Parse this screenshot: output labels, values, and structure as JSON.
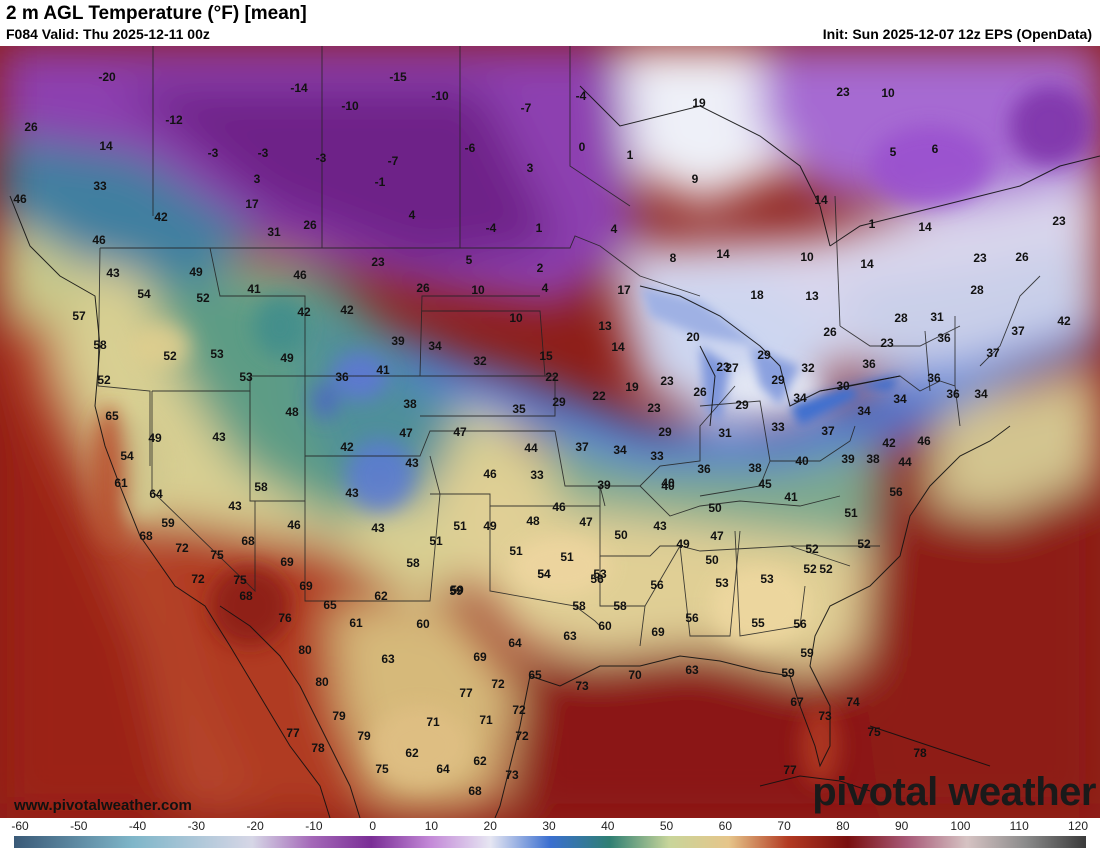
{
  "header": {
    "title": "2 m AGL Temperature (°F) [mean]",
    "valid": "F084 Valid: Thu 2025-12-11 00z",
    "init": "Init: Sun 2025-12-07 12z EPS (OpenData)"
  },
  "footer": {
    "website": "www.pivotalweather.com",
    "brand": "pivotal weather"
  },
  "colorbar": {
    "ticks": [
      "-60",
      "-50",
      "-40",
      "-30",
      "-20",
      "-10",
      "0",
      "10",
      "20",
      "30",
      "40",
      "50",
      "60",
      "70",
      "80",
      "90",
      "100",
      "110",
      "120"
    ],
    "colors": {
      "-60": "#3a5a78",
      "-40": "#7fb6c9",
      "-20": "#d6d6e6",
      "-10": "#a468b8",
      "0": "#7a2e96",
      "10": "#c48ad8",
      "20": "#e6e6f2",
      "30": "#3b6fd0",
      "40": "#2f7f73",
      "50": "#c8d59a",
      "60": "#e6c58a",
      "70": "#b23a22",
      "80": "#7a0f0f",
      "90": "#a85a78",
      "100": "#d6c3c3",
      "110": "#8a8a8a",
      "120": "#3a3a3a"
    }
  },
  "map": {
    "labels": [
      [
        "-20",
        ""
      ],
      [
        "-14",
        ""
      ],
      [
        "-15",
        ""
      ],
      [
        "-10",
        ""
      ],
      [
        "-12",
        ""
      ],
      [
        "-7",
        ""
      ],
      [
        "-10",
        ""
      ],
      [
        "-4",
        ""
      ],
      [
        "26",
        ""
      ],
      [
        "14",
        ""
      ],
      [
        "-3",
        ""
      ],
      [
        "-3",
        ""
      ],
      [
        "-3",
        ""
      ],
      [
        "-7",
        ""
      ],
      [
        "-6",
        ""
      ],
      [
        "0",
        ""
      ],
      [
        "1",
        ""
      ],
      [
        "19",
        ""
      ],
      [
        "23",
        ""
      ],
      [
        "10",
        ""
      ],
      [
        "33",
        ""
      ],
      [
        "3",
        ""
      ],
      [
        "-1",
        ""
      ],
      [
        "3",
        ""
      ],
      [
        "9",
        ""
      ],
      [
        "5",
        ""
      ],
      [
        "6",
        ""
      ],
      [
        "46",
        ""
      ],
      [
        "17",
        ""
      ],
      [
        "14",
        ""
      ],
      [
        "42",
        ""
      ],
      [
        "4",
        ""
      ],
      [
        "-4",
        ""
      ],
      [
        "1",
        ""
      ],
      [
        "4",
        ""
      ],
      [
        "1",
        ""
      ],
      [
        "14",
        ""
      ],
      [
        "23",
        ""
      ],
      [
        "31",
        ""
      ],
      [
        "26",
        ""
      ],
      [
        "46",
        ""
      ],
      [
        "23",
        ""
      ],
      [
        "5",
        ""
      ],
      [
        "2",
        ""
      ],
      [
        "8",
        ""
      ],
      [
        "14",
        ""
      ],
      [
        "10",
        ""
      ],
      [
        "14",
        ""
      ],
      [
        "23",
        ""
      ],
      [
        "26",
        ""
      ],
      [
        "43",
        ""
      ],
      [
        "49",
        ""
      ],
      [
        "46",
        ""
      ],
      [
        "26",
        ""
      ],
      [
        "10",
        ""
      ],
      [
        "4",
        ""
      ],
      [
        "17",
        ""
      ],
      [
        "18",
        ""
      ],
      [
        "13",
        ""
      ],
      [
        "28",
        ""
      ],
      [
        "54",
        ""
      ],
      [
        "52",
        ""
      ],
      [
        "41",
        ""
      ],
      [
        "42",
        ""
      ],
      [
        "42",
        ""
      ],
      [
        "10",
        ""
      ],
      [
        "13",
        ""
      ],
      [
        "28",
        ""
      ],
      [
        "31",
        ""
      ],
      [
        "37",
        ""
      ],
      [
        "42",
        ""
      ],
      [
        "57",
        ""
      ],
      [
        "39",
        ""
      ],
      [
        "34",
        ""
      ],
      [
        "14",
        ""
      ],
      [
        "20",
        ""
      ],
      [
        "26",
        ""
      ],
      [
        "23",
        ""
      ],
      [
        "36",
        ""
      ],
      [
        "37",
        ""
      ],
      [
        "58",
        ""
      ],
      [
        "52",
        ""
      ],
      [
        "53",
        ""
      ],
      [
        "49",
        ""
      ],
      [
        "41",
        ""
      ],
      [
        "32",
        ""
      ],
      [
        "15",
        ""
      ],
      [
        "23",
        ""
      ],
      [
        "27",
        ""
      ],
      [
        "29",
        ""
      ],
      [
        "29",
        ""
      ],
      [
        "32",
        ""
      ],
      [
        "36",
        ""
      ],
      [
        "52",
        ""
      ],
      [
        "53",
        ""
      ],
      [
        "36",
        ""
      ],
      [
        "22",
        ""
      ],
      [
        "19",
        ""
      ],
      [
        "26",
        ""
      ],
      [
        "23",
        ""
      ],
      [
        "30",
        ""
      ],
      [
        "34",
        ""
      ],
      [
        "36",
        ""
      ],
      [
        "36",
        ""
      ],
      [
        "65",
        ""
      ],
      [
        "48",
        ""
      ],
      [
        "35",
        ""
      ],
      [
        "29",
        ""
      ],
      [
        "22",
        ""
      ],
      [
        "23",
        ""
      ],
      [
        "29",
        ""
      ],
      [
        "34",
        ""
      ],
      [
        "34",
        ""
      ],
      [
        "34",
        ""
      ],
      [
        "38",
        ""
      ],
      [
        "49",
        ""
      ],
      [
        "43",
        ""
      ],
      [
        "47",
        ""
      ],
      [
        "47",
        ""
      ],
      [
        "29",
        ""
      ],
      [
        "31",
        ""
      ],
      [
        "33",
        ""
      ],
      [
        "33",
        ""
      ],
      [
        "42",
        ""
      ],
      [
        "46",
        ""
      ],
      [
        "40",
        ""
      ],
      [
        "37",
        ""
      ],
      [
        "34",
        ""
      ],
      [
        "36",
        ""
      ],
      [
        "38",
        ""
      ],
      [
        "40",
        ""
      ],
      [
        "54",
        ""
      ],
      [
        "42",
        ""
      ],
      [
        "43",
        ""
      ],
      [
        "46",
        ""
      ],
      [
        "44",
        ""
      ],
      [
        "33",
        ""
      ],
      [
        "37",
        ""
      ],
      [
        "39",
        ""
      ],
      [
        "38",
        ""
      ],
      [
        "44",
        ""
      ],
      [
        "61",
        ""
      ],
      [
        "58",
        ""
      ],
      [
        "43",
        ""
      ],
      [
        "39",
        ""
      ],
      [
        "40",
        ""
      ],
      [
        "45",
        ""
      ],
      [
        "41",
        ""
      ],
      [
        "56",
        ""
      ],
      [
        "64",
        ""
      ],
      [
        "43",
        ""
      ],
      [
        "46",
        ""
      ],
      [
        "43",
        ""
      ],
      [
        "51",
        ""
      ],
      [
        "59",
        ""
      ],
      [
        "43",
        ""
      ],
      [
        "51",
        ""
      ],
      [
        "49",
        ""
      ],
      [
        "48",
        ""
      ],
      [
        "46",
        ""
      ],
      [
        "47",
        ""
      ],
      [
        "50",
        ""
      ],
      [
        "50",
        ""
      ],
      [
        "68",
        ""
      ],
      [
        "72",
        ""
      ],
      [
        "75",
        ""
      ],
      [
        "68",
        ""
      ],
      [
        "51",
        ""
      ],
      [
        "58",
        ""
      ],
      [
        "51",
        ""
      ],
      [
        "51",
        ""
      ],
      [
        "54",
        ""
      ],
      [
        "49",
        ""
      ],
      [
        "47",
        ""
      ],
      [
        "52",
        ""
      ],
      [
        "52",
        ""
      ],
      [
        "69",
        ""
      ],
      [
        "53",
        ""
      ],
      [
        "50",
        ""
      ],
      [
        "72",
        ""
      ],
      [
        "75",
        ""
      ],
      [
        "69",
        ""
      ],
      [
        "59",
        ""
      ],
      [
        "56",
        ""
      ],
      [
        "56",
        ""
      ],
      [
        "53",
        ""
      ],
      [
        "53",
        ""
      ],
      [
        "52",
        ""
      ],
      [
        "52",
        ""
      ],
      [
        "65",
        ""
      ],
      [
        "62",
        ""
      ],
      [
        "59",
        ""
      ],
      [
        "58",
        ""
      ],
      [
        "58",
        ""
      ],
      [
        "54",
        ""
      ],
      [
        "76",
        ""
      ],
      [
        "61",
        ""
      ],
      [
        "60",
        ""
      ],
      [
        "63",
        ""
      ],
      [
        "60",
        ""
      ],
      [
        "68",
        ""
      ],
      [
        "56",
        ""
      ],
      [
        "55",
        ""
      ],
      [
        "56",
        ""
      ],
      [
        "80",
        ""
      ],
      [
        "63",
        ""
      ],
      [
        "64",
        ""
      ],
      [
        "69",
        ""
      ],
      [
        "69",
        ""
      ],
      [
        "59",
        ""
      ],
      [
        "80",
        ""
      ],
      [
        "77",
        ""
      ],
      [
        "72",
        ""
      ],
      [
        "65",
        ""
      ],
      [
        "73",
        ""
      ],
      [
        "70",
        ""
      ],
      [
        "59",
        ""
      ],
      [
        "63",
        ""
      ],
      [
        "79",
        ""
      ],
      [
        "71",
        ""
      ],
      [
        "71",
        ""
      ],
      [
        "72",
        ""
      ],
      [
        "67",
        ""
      ],
      [
        "73",
        ""
      ],
      [
        "74",
        ""
      ],
      [
        "77",
        ""
      ],
      [
        "78",
        ""
      ],
      [
        "79",
        ""
      ],
      [
        "72",
        ""
      ],
      [
        "75",
        ""
      ],
      [
        "78",
        ""
      ],
      [
        "62",
        ""
      ],
      [
        "64",
        ""
      ],
      [
        "62",
        ""
      ],
      [
        "73",
        ""
      ],
      [
        "75",
        ""
      ],
      [
        "68",
        ""
      ],
      [
        "77",
        ""
      ]
    ]
  }
}
